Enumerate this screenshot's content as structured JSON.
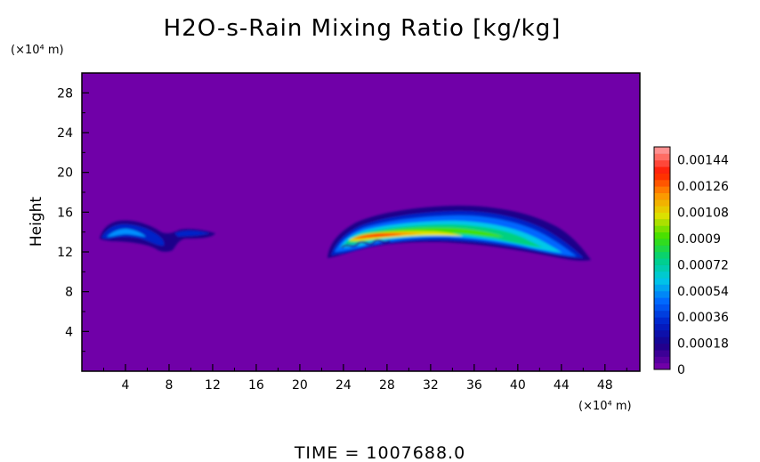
{
  "chart_data": {
    "type": "heatmap",
    "title": "H2O-s-Rain Mixing Ratio [kg/kg]",
    "ylabel": "Height",
    "xunit": "(×10⁴ m)",
    "yunit": "(×10⁴ m)",
    "x_ticks": [
      "4",
      "8",
      "12",
      "16",
      "20",
      "24",
      "28",
      "32",
      "36",
      "40",
      "44",
      "48"
    ],
    "y_ticks": [
      "4",
      "8",
      "12",
      "16",
      "20",
      "24",
      "28"
    ],
    "xlim": [
      0,
      51.2
    ],
    "ylim": [
      0,
      30
    ],
    "colorbar": {
      "levels": [
        "0",
        "0.00018",
        "0.00036",
        "0.00054",
        "0.00072",
        "0.0009",
        "0.00108",
        "0.00126",
        "0.00144"
      ],
      "min": 0,
      "max": 0.00153,
      "colors": [
        "#7000a8",
        "#1a008a",
        "#0020c8",
        "#0066ff",
        "#00c8e8",
        "#00d080",
        "#40e000",
        "#e0e000",
        "#ff9000",
        "#ff1800",
        "#ff9090"
      ]
    },
    "features": [
      {
        "name": "cloud-west",
        "x": [
          1.8,
          12.5
        ],
        "y": [
          12.2,
          14.8
        ],
        "peak": 0.0004
      },
      {
        "name": "cloud-east",
        "x": [
          22.8,
          46.5
        ],
        "y": [
          11.0,
          16.5
        ],
        "peak": 0.0013
      }
    ],
    "grid": false,
    "legend": "right"
  },
  "footer": {
    "time_label": "TIME = 1007688.0"
  }
}
